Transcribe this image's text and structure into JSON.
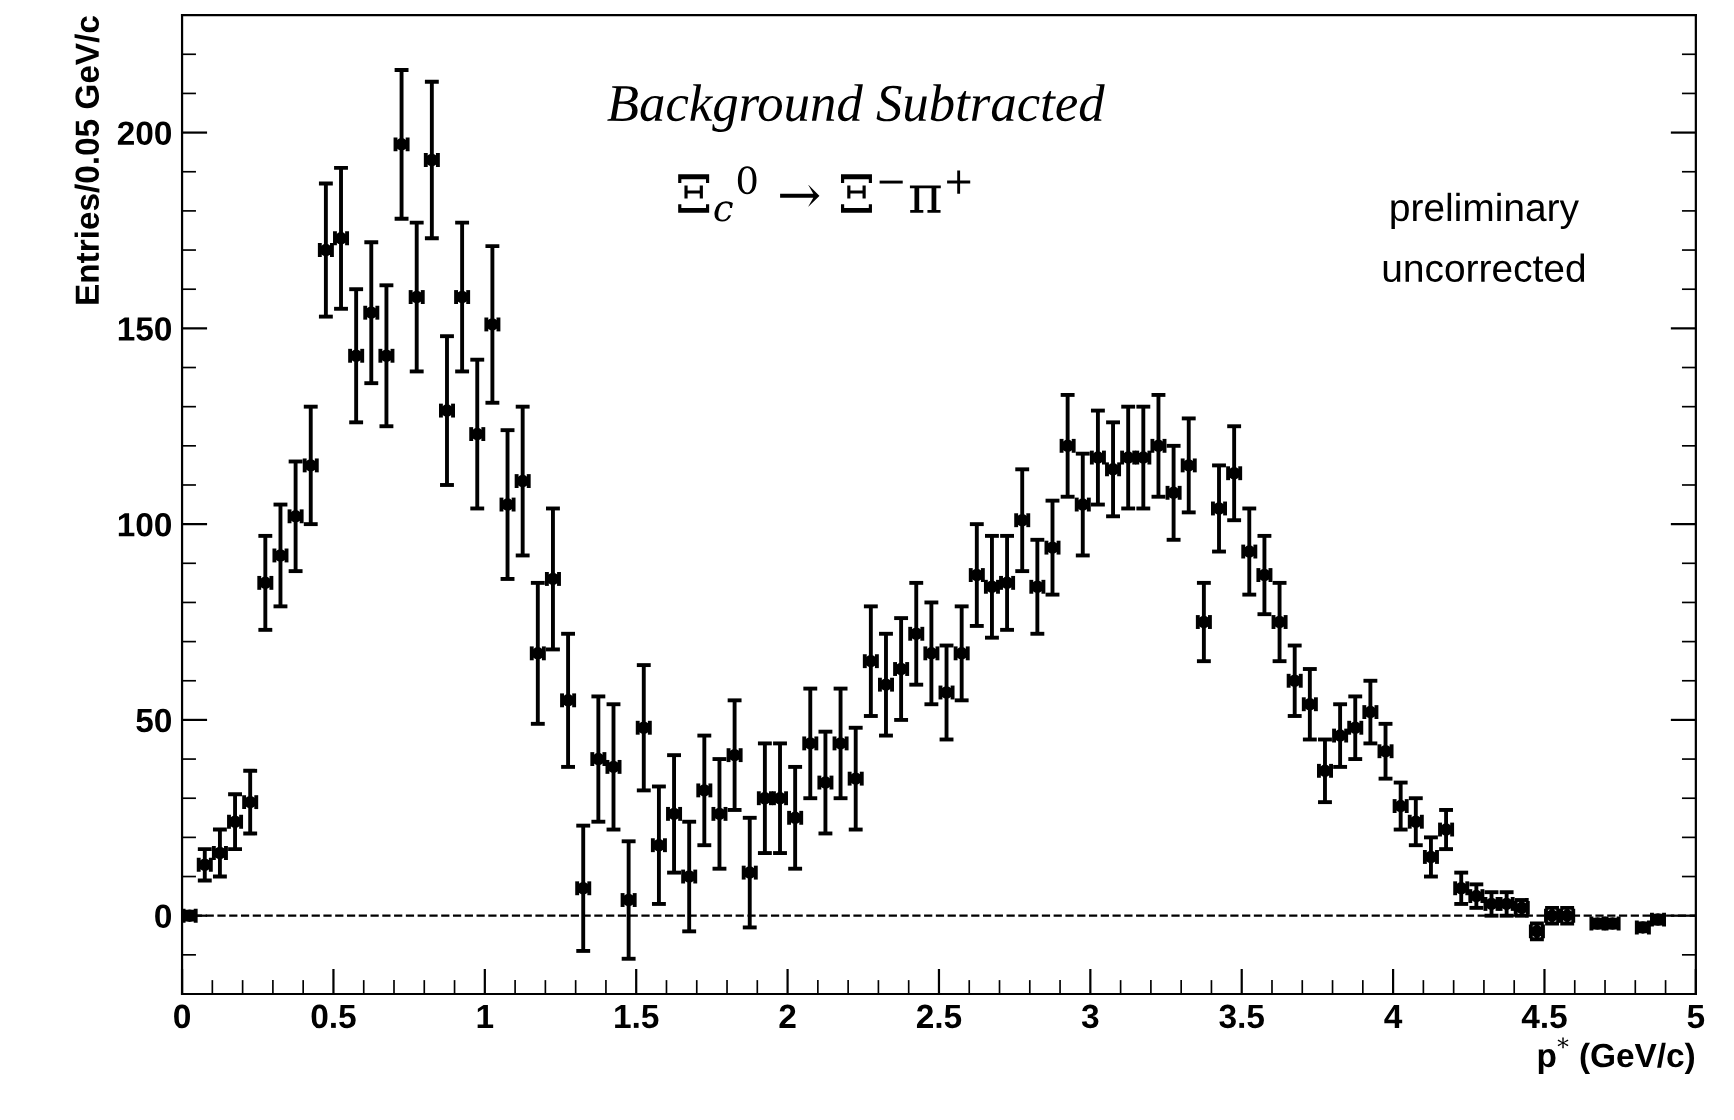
{
  "chart_data": {
    "type": "scatter",
    "title": "Background Subtracted",
    "subtitle": "Ξ$_{c}$$^{0}$ → Ξ$^{−}$π$^{+}$",
    "annotations": [
      "preliminary",
      "uncorrected"
    ],
    "xlabel": "p$^{*}$ (GeV/c)",
    "ylabel": "Entries/0.05 GeV/c",
    "xlim": [
      0,
      5
    ],
    "ylim": [
      -20,
      230
    ],
    "xticks": [
      0,
      0.5,
      1,
      1.5,
      2,
      2.5,
      3,
      3.5,
      4,
      4.5,
      5
    ],
    "yticks": [
      0,
      50,
      100,
      150,
      200
    ],
    "grid": false,
    "legend": false,
    "marker": "circle",
    "ref_lines": [
      {
        "axis": "y",
        "value": 0,
        "label": null,
        "color": "#000000",
        "line_style": "dashed"
      }
    ],
    "series": [
      {
        "color": "#000000",
        "x": [
          0.025,
          0.075,
          0.125,
          0.175,
          0.225,
          0.275,
          0.325,
          0.375,
          0.425,
          0.475,
          0.525,
          0.575,
          0.625,
          0.675,
          0.725,
          0.775,
          0.825,
          0.875,
          0.925,
          0.975,
          1.025,
          1.075,
          1.125,
          1.175,
          1.225,
          1.275,
          1.325,
          1.375,
          1.425,
          1.475,
          1.525,
          1.575,
          1.625,
          1.675,
          1.725,
          1.775,
          1.825,
          1.875,
          1.925,
          1.975,
          2.025,
          2.075,
          2.125,
          2.175,
          2.225,
          2.275,
          2.325,
          2.375,
          2.425,
          2.475,
          2.525,
          2.575,
          2.625,
          2.675,
          2.725,
          2.775,
          2.825,
          2.875,
          2.925,
          2.975,
          3.025,
          3.075,
          3.125,
          3.175,
          3.225,
          3.275,
          3.325,
          3.375,
          3.425,
          3.475,
          3.525,
          3.575,
          3.625,
          3.675,
          3.725,
          3.775,
          3.825,
          3.875,
          3.925,
          3.975,
          4.025,
          4.075,
          4.125,
          4.175,
          4.225,
          4.275,
          4.325,
          4.375,
          4.425,
          4.475,
          4.525,
          4.575,
          4.675,
          4.725,
          4.825,
          4.875
        ],
        "values": [
          0,
          13,
          16,
          24,
          29,
          85,
          92,
          102,
          115,
          170,
          173,
          143,
          154,
          143,
          197,
          158,
          193,
          129,
          158,
          123,
          151,
          105,
          111,
          67,
          86,
          55,
          7,
          40,
          38,
          4,
          48,
          18,
          26,
          10,
          32,
          26,
          41,
          11,
          30,
          30,
          25,
          44,
          34,
          44,
          35,
          65,
          59,
          63,
          72,
          67,
          57,
          67,
          87,
          84,
          85,
          101,
          84,
          94,
          120,
          105,
          117,
          114,
          117,
          117,
          120,
          108,
          115,
          75,
          104,
          113,
          93,
          87,
          75,
          60,
          54,
          37,
          46,
          48,
          52,
          42,
          28,
          24,
          15,
          22,
          7,
          5,
          3,
          3,
          2,
          -4,
          0,
          0,
          -2,
          -2,
          -3,
          -1
        ],
        "errors": [
          1,
          4,
          6,
          7,
          8,
          12,
          13,
          14,
          15,
          17,
          18,
          17,
          18,
          18,
          19,
          19,
          20,
          19,
          19,
          19,
          20,
          19,
          19,
          18,
          18,
          17,
          16,
          16,
          16,
          15,
          16,
          15,
          15,
          14,
          14,
          14,
          14,
          14,
          14,
          14,
          13,
          14,
          13,
          14,
          13,
          14,
          13,
          13,
          13,
          13,
          12,
          12,
          13,
          13,
          12,
          13,
          12,
          12,
          13,
          13,
          12,
          12,
          13,
          13,
          13,
          12,
          12,
          10,
          11,
          12,
          11,
          10,
          10,
          9,
          9,
          8,
          8,
          8,
          8,
          7,
          6,
          6,
          5,
          5,
          4,
          3,
          3,
          3,
          2,
          2,
          2,
          2,
          1,
          1,
          1,
          1
        ],
        "xerrors": [
          0.02,
          0.02,
          0.02,
          0.02,
          0.02,
          0.02,
          0.02,
          0.02,
          0.02,
          0.02,
          0.02,
          0.02,
          0.02,
          0.02,
          0.02,
          0.02,
          0.02,
          0.02,
          0.02,
          0.02,
          0.02,
          0.02,
          0.02,
          0.02,
          0.02,
          0.02,
          0.02,
          0.02,
          0.02,
          0.02,
          0.02,
          0.02,
          0.02,
          0.02,
          0.02,
          0.02,
          0.02,
          0.02,
          0.02,
          0.02,
          0.02,
          0.02,
          0.02,
          0.02,
          0.02,
          0.02,
          0.02,
          0.02,
          0.02,
          0.02,
          0.02,
          0.02,
          0.02,
          0.02,
          0.02,
          0.02,
          0.02,
          0.02,
          0.02,
          0.02,
          0.02,
          0.02,
          0.02,
          0.02,
          0.02,
          0.02,
          0.02,
          0.02,
          0.02,
          0.02,
          0.02,
          0.02,
          0.02,
          0.02,
          0.02,
          0.02,
          0.02,
          0.02,
          0.02,
          0.02,
          0.02,
          0.02,
          0.02,
          0.02,
          0.02,
          0.02,
          0.02,
          0.02,
          0.02,
          0.02,
          0.02,
          0.02,
          0.02,
          0.02,
          0.02,
          0.02
        ]
      }
    ]
  }
}
